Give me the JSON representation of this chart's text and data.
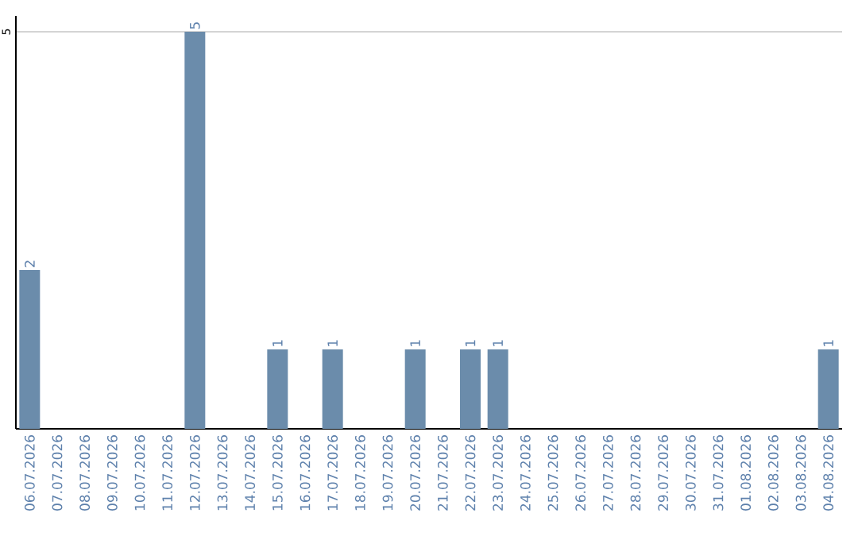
{
  "chart_data": {
    "type": "bar",
    "categories": [
      "06.07.2026",
      "07.07.2026",
      "08.07.2026",
      "09.07.2026",
      "10.07.2026",
      "11.07.2026",
      "12.07.2026",
      "13.07.2026",
      "14.07.2026",
      "15.07.2026",
      "16.07.2026",
      "17.07.2026",
      "18.07.2026",
      "19.07.2026",
      "20.07.2026",
      "21.07.2026",
      "22.07.2026",
      "23.07.2026",
      "24.07.2026",
      "25.07.2026",
      "26.07.2026",
      "27.07.2026",
      "28.07.2026",
      "29.07.2026",
      "30.07.2026",
      "31.07.2026",
      "01.08.2026",
      "02.08.2026",
      "03.08.2026",
      "04.08.2026"
    ],
    "values": [
      2,
      0,
      0,
      0,
      0,
      0,
      5,
      0,
      0,
      1,
      0,
      1,
      0,
      0,
      1,
      0,
      1,
      1,
      0,
      0,
      0,
      0,
      0,
      0,
      0,
      0,
      0,
      0,
      0,
      1
    ],
    "value_labels": [
      "2",
      null,
      null,
      null,
      null,
      null,
      "5",
      null,
      null,
      "1",
      null,
      "1",
      null,
      null,
      "1",
      null,
      "1",
      "1",
      null,
      null,
      null,
      null,
      null,
      null,
      null,
      null,
      null,
      null,
      null,
      "1"
    ],
    "color": "#6b8cab",
    "ylim": [
      0,
      5.2
    ],
    "yticks": [
      5
    ],
    "grid": "y"
  }
}
